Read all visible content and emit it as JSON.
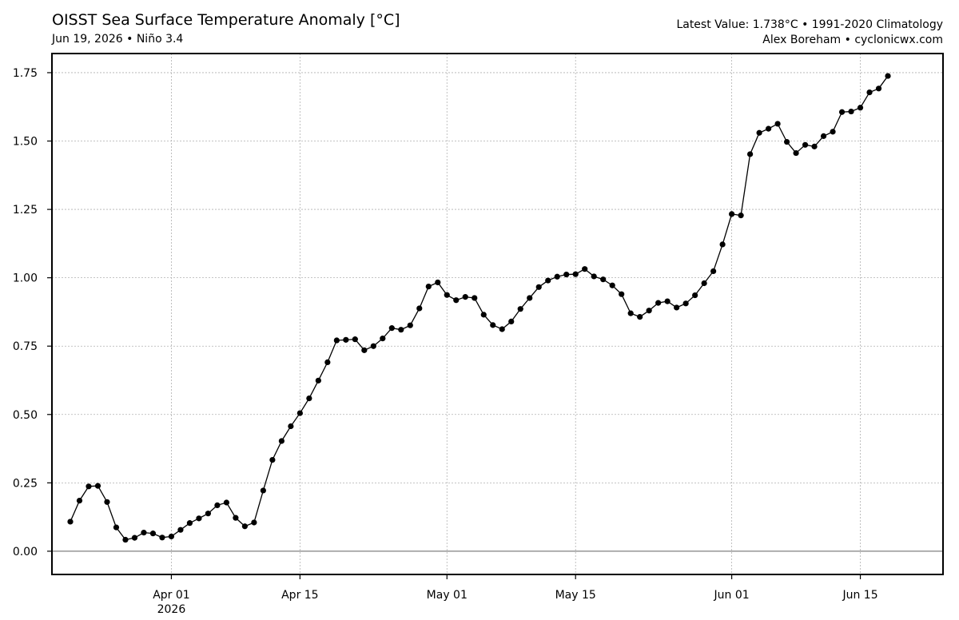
{
  "header": {
    "title": "OISST Sea Surface Temperature Anomaly [°C]",
    "subtitle": "Jun 19, 2026 • Niño 3.4",
    "info_line1": "Latest Value: 1.738°C • 1991-2020 Climatology",
    "info_line2": "Alex Boreham • cyclonicwx.com"
  },
  "chart_data": {
    "type": "line",
    "title": "OISST Sea Surface Temperature Anomaly [°C]",
    "subtitle": "Jun 19, 2026 • Niño 3.4",
    "xlabel": "",
    "ylabel": "",
    "x_start": "2026-03-21",
    "x_end": "2026-06-19",
    "xlim": [
      "2026-03-19",
      "2026-06-24"
    ],
    "ylim": [
      -0.085,
      1.82
    ],
    "yticks": [
      0.0,
      0.25,
      0.5,
      0.75,
      1.0,
      1.25,
      1.5,
      1.75
    ],
    "ytick_labels": [
      "0.00",
      "0.25",
      "0.50",
      "0.75",
      "1.00",
      "1.25",
      "1.50",
      "1.75"
    ],
    "xticks": [
      {
        "date": "2026-04-01",
        "label": "Apr 01",
        "sublabel": "2026"
      },
      {
        "date": "2026-04-15",
        "label": "Apr 15",
        "sublabel": ""
      },
      {
        "date": "2026-05-01",
        "label": "May 01",
        "sublabel": ""
      },
      {
        "date": "2026-05-15",
        "label": "May 15",
        "sublabel": ""
      },
      {
        "date": "2026-06-01",
        "label": "Jun 01",
        "sublabel": ""
      },
      {
        "date": "2026-06-15",
        "label": "Jun 15",
        "sublabel": ""
      }
    ],
    "grid": true,
    "zero_line": true,
    "series": [
      {
        "values": [
          0.108,
          0.185,
          0.237,
          0.239,
          0.18,
          0.087,
          0.042,
          0.049,
          0.068,
          0.065,
          0.05,
          0.054,
          0.078,
          0.103,
          0.12,
          0.138,
          0.168,
          0.178,
          0.122,
          0.091,
          0.105,
          0.222,
          0.334,
          0.403,
          0.457,
          0.505,
          0.559,
          0.624,
          0.691,
          0.771,
          0.773,
          0.775,
          0.735,
          0.75,
          0.778,
          0.816,
          0.81,
          0.826,
          0.888,
          0.968,
          0.983,
          0.937,
          0.918,
          0.93,
          0.926,
          0.865,
          0.827,
          0.812,
          0.84,
          0.886,
          0.926,
          0.966,
          0.99,
          1.004,
          1.012,
          1.013,
          1.032,
          1.005,
          0.994,
          0.972,
          0.94,
          0.87,
          0.857,
          0.88,
          0.908,
          0.914,
          0.891,
          0.906,
          0.936,
          0.98,
          1.024,
          1.122,
          1.233,
          1.228,
          1.452,
          1.53,
          1.545,
          1.563,
          1.497,
          1.456,
          1.486,
          1.48,
          1.518,
          1.534,
          1.606,
          1.608,
          1.622,
          1.678,
          1.692,
          1.738
        ]
      }
    ]
  }
}
